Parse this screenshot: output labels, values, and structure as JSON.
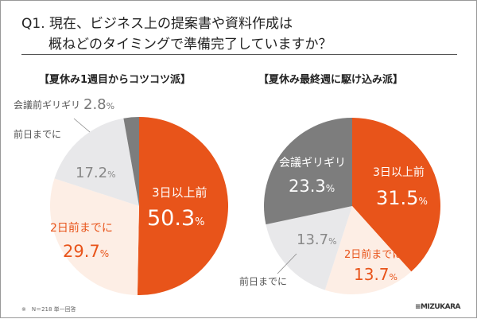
{
  "title": {
    "line1": "Q1. 現在、ビジネス上の提案書や資料作成は",
    "line2": "概ねどのタイミングで準備完了していますか？"
  },
  "footnote": "※　N＝218 単一回答",
  "logo": "MIZUKARA",
  "colors": {
    "3日以上前": "#E8541A",
    "2日前までに": "#FDEEE5",
    "前日までに": "#E8E8EA",
    "会議前ギリギリ": "#7D7D7D"
  },
  "chart_data": [
    {
      "type": "pie",
      "title": "【夏休み1週目からコツコツ派】",
      "categories": [
        "3日以上前",
        "2日前までに",
        "前日までに",
        "会議前ギリギリ"
      ],
      "values": [
        50.3,
        29.7,
        17.2,
        2.8
      ],
      "value_labels": [
        "50.3",
        "29.7",
        "17.2",
        "2.8"
      ],
      "unit": "%"
    },
    {
      "type": "pie",
      "title": "【夏休み最終週に駆け込み派】",
      "categories": [
        "3日以上前",
        "2日前までに",
        "前日までに",
        "会議ギリギリ"
      ],
      "values": [
        31.5,
        13.7,
        13.7,
        23.3
      ],
      "value_labels": [
        "31.5",
        "13.7",
        "13.7",
        "23.3"
      ],
      "unit": "%"
    }
  ]
}
